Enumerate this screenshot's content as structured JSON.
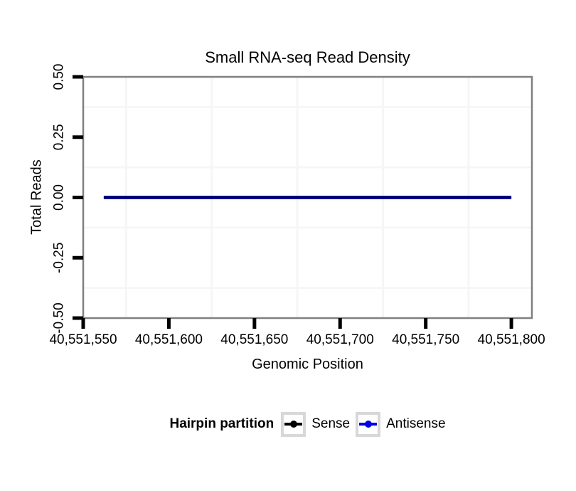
{
  "chart_data": {
    "type": "line",
    "title": "Small RNA-seq Read Density",
    "xlabel": "Genomic Position",
    "ylabel": "Total Reads",
    "xlim": [
      40551550,
      40551812
    ],
    "ylim": [
      -0.5,
      0.5
    ],
    "grid": "minor-only",
    "legend_position": "bottom",
    "x_ticks": [
      {
        "value": 40551550,
        "label": "40,551,550"
      },
      {
        "value": 40551600,
        "label": "40,551,600"
      },
      {
        "value": 40551650,
        "label": "40,551,650"
      },
      {
        "value": 40551700,
        "label": "40,551,700"
      },
      {
        "value": 40551750,
        "label": "40,551,750"
      },
      {
        "value": 40551800,
        "label": "40,551,800"
      }
    ],
    "y_ticks": [
      {
        "value": 0.5,
        "label": "0.50"
      },
      {
        "value": 0.25,
        "label": "0.25"
      },
      {
        "value": 0.0,
        "label": "0.00"
      },
      {
        "value": -0.25,
        "label": "-0.25"
      },
      {
        "value": -0.5,
        "label": "-0.50"
      }
    ],
    "x_minor_gridlines": [
      40551575,
      40551625,
      40551675,
      40551725,
      40551775
    ],
    "y_minor_gridlines": [
      -0.375,
      -0.125,
      0.125,
      0.375
    ],
    "series": [
      {
        "name": "Sense",
        "color": "#000000",
        "line_width": 2.6,
        "x": [
          40551562,
          40551800
        ],
        "y": [
          0,
          0
        ]
      },
      {
        "name": "Antisense",
        "color": "#0000E6",
        "line_width": 4.8,
        "x": [
          40551562,
          40551800
        ],
        "y": [
          0,
          0
        ]
      }
    ],
    "legend": {
      "title": "Hairpin partition"
    }
  },
  "colors": {
    "background": "#FFFFFF",
    "panel_border": "#808080",
    "tick": "#000000",
    "minor_grid": "#F6F6F6",
    "legend_key_border": "#D8D8D8",
    "text": "#000000"
  }
}
